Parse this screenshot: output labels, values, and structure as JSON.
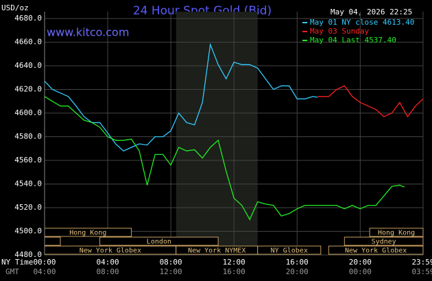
{
  "chart_data": {
    "type": "line",
    "title": "24 Hour Spot Gold (Bid)",
    "unit_label": "USD/oz",
    "watermark": "www.kitco.com",
    "timestamp": "May 04, 2026 22:25",
    "x_row_labels": [
      "NY Time",
      "GMT"
    ],
    "xlim": [
      0,
      23.983
    ],
    "xticks": [
      {
        "value": 0,
        "label": "00:00"
      },
      {
        "value": 4,
        "label": "04:00"
      },
      {
        "value": 8,
        "label": "08:00"
      },
      {
        "value": 12,
        "label": "12:00"
      },
      {
        "value": 16,
        "label": "16:00"
      },
      {
        "value": 20,
        "label": "20:00"
      },
      {
        "value": 23.983,
        "label": "23:59"
      }
    ],
    "gmt_labels": [
      "04:00",
      "08:00",
      "12:00",
      "16:00",
      "20:00",
      "00:00",
      "03:59"
    ],
    "ylim": [
      4480,
      4680
    ],
    "yticks": [
      {
        "value": 4480,
        "label": "4480.0"
      },
      {
        "value": 4500,
        "label": "4500.0"
      },
      {
        "value": 4520,
        "label": "4520.0"
      },
      {
        "value": 4540,
        "label": "4540.0"
      },
      {
        "value": 4560,
        "label": "4560.0"
      },
      {
        "value": 4580,
        "label": "4580.0"
      },
      {
        "value": 4600,
        "label": "4600.0"
      },
      {
        "value": 4620,
        "label": "4620.0"
      },
      {
        "value": 4640,
        "label": "4640.0"
      },
      {
        "value": 4660,
        "label": "4660.0"
      },
      {
        "value": 4680,
        "label": "4680.0"
      }
    ],
    "grid": true,
    "series": [
      {
        "name": "May 01 NY close 4613.40",
        "color": "#33ccff",
        "x": [
          0,
          0.5,
          1,
          1.5,
          2,
          2.5,
          3,
          3.5,
          4,
          4.5,
          5,
          5.5,
          6,
          6.5,
          7,
          7.5,
          8,
          8.5,
          9,
          9.5,
          10,
          10.5,
          11,
          11.5,
          12,
          12.5,
          13,
          13.5,
          14,
          14.5,
          15,
          15.5,
          16,
          16.5,
          17,
          17.3
        ],
        "values": [
          4627,
          4620,
          4617,
          4614,
          4606,
          4597,
          4592,
          4592,
          4583,
          4574,
          4568,
          4571,
          4574,
          4573,
          4580,
          4580,
          4585,
          4600,
          4592,
          4590,
          4609,
          4658,
          4641,
          4629,
          4643,
          4641,
          4641,
          4638,
          4629,
          4620,
          4623,
          4623,
          4612,
          4612,
          4614,
          4613.4
        ]
      },
      {
        "name": "May 03 Sunday",
        "color": "#ff2020",
        "x": [
          17.3,
          18,
          18.5,
          19,
          19.5,
          20,
          20.5,
          21,
          21.5,
          22,
          22.5,
          23,
          23.5,
          23.983
        ],
        "values": [
          4614,
          4614,
          4620,
          4623,
          4614,
          4609,
          4606,
          4603,
          4597,
          4600,
          4609,
          4597,
          4606,
          4612
        ]
      },
      {
        "name": "May 04 Last 4537.40",
        "color": "#22ee22",
        "x": [
          0,
          0.5,
          1,
          1.5,
          2,
          2.5,
          3,
          3.5,
          4,
          4.5,
          5,
          5.5,
          6,
          6.5,
          7,
          7.5,
          8,
          8.5,
          9,
          9.5,
          10,
          10.5,
          11,
          11.5,
          12,
          12.5,
          13,
          13.5,
          14,
          14.5,
          15,
          15.5,
          16,
          16.5,
          17,
          17.5,
          18,
          18.5,
          19,
          19.5,
          20,
          20.5,
          21,
          21.5,
          22,
          22.5,
          22.8
        ],
        "values": [
          4614,
          4610,
          4606,
          4606,
          4600,
          4594,
          4592,
          4588,
          4580,
          4577,
          4577,
          4578,
          4568,
          4539,
          4565,
          4565,
          4556,
          4571,
          4568,
          4569,
          4562,
          4571,
          4577,
          4551,
          4528,
          4522,
          4510,
          4525,
          4523,
          4522,
          4513,
          4515,
          4519,
          4522,
          4522,
          4522,
          4522,
          4522,
          4519,
          4522,
          4519,
          4522,
          4522,
          4530,
          4538,
          4539,
          4537.4
        ]
      }
    ],
    "sessions": [
      {
        "label": "Hong Kong",
        "start": 0,
        "end": 5.5
      },
      {
        "label": "Hong Kong",
        "start": 20.6,
        "end": 23.983
      },
      {
        "label": "",
        "start": 0,
        "end": 1
      },
      {
        "label": "London",
        "start": 3.5,
        "end": 11
      },
      {
        "label": "Sydney",
        "start": 19,
        "end": 23.983
      },
      {
        "label": "New York Globex",
        "start": 0,
        "end": 8.33
      },
      {
        "label": "New York NYMEX",
        "start": 8.33,
        "end": 13.5
      },
      {
        "label": "NY Globex",
        "start": 13.5,
        "end": 17.5
      },
      {
        "label": "New York Globex",
        "start": 18,
        "end": 23.983
      }
    ]
  }
}
